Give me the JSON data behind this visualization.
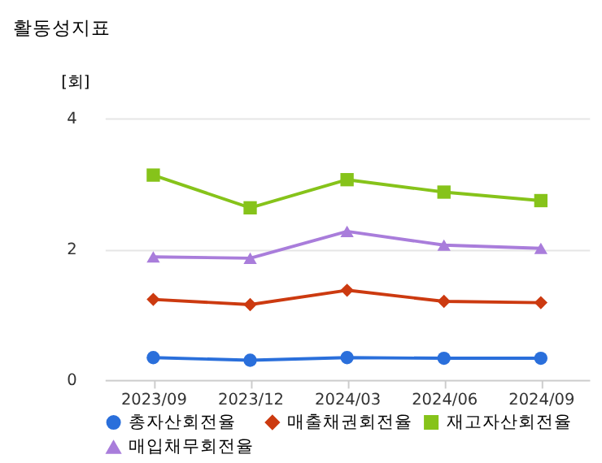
{
  "chart_data": {
    "type": "line",
    "title": "활동성지표",
    "ylabel": "[회]",
    "categories": [
      "2023/09",
      "2023/12",
      "2024/03",
      "2024/06",
      "2024/09"
    ],
    "ylim": [
      0,
      4
    ],
    "yticks": [
      0,
      2,
      4
    ],
    "grid": "y",
    "legend": "bottom",
    "line_style": "solid",
    "series": [
      {
        "name": "총자산회전율",
        "color": "#2a6fdb",
        "marker": "circle",
        "values": [
          0.34,
          0.3,
          0.34,
          0.33,
          0.33
        ]
      },
      {
        "name": "매출채권회전율",
        "color": "#cc3a10",
        "marker": "diamond",
        "values": [
          1.23,
          1.15,
          1.37,
          1.2,
          1.18
        ]
      },
      {
        "name": "재고자산회전율",
        "color": "#86c31a",
        "marker": "square",
        "values": [
          3.13,
          2.63,
          3.06,
          2.87,
          2.74
        ]
      },
      {
        "name": "매입채무회전율",
        "color": "#a97ddb",
        "marker": "triangle",
        "values": [
          1.88,
          1.86,
          2.27,
          2.06,
          2.01
        ]
      }
    ]
  }
}
